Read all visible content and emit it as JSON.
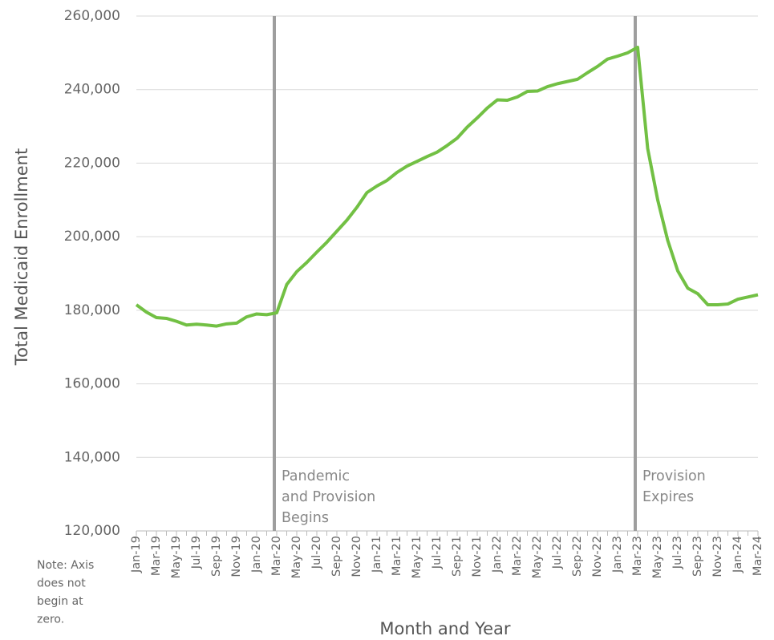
{
  "chart_data": {
    "type": "line",
    "x_label": "Month and Year",
    "y_label": "Total Medicaid Enrollment",
    "note": [
      "Note: Axis",
      "does not",
      "begin at",
      "zero."
    ],
    "categories": [
      "Jan-19",
      null,
      "Mar-19",
      null,
      "May-19",
      null,
      "Jul-19",
      null,
      "Sep-19",
      null,
      "Nov-19",
      null,
      "Jan-20",
      null,
      "Mar-20",
      null,
      "May-20",
      null,
      "Jul-20",
      null,
      "Sep-20",
      null,
      "Nov-20",
      null,
      "Jan-21",
      null,
      "Mar-21",
      null,
      "May-21",
      null,
      "Jul-21",
      null,
      "Sep-21",
      null,
      "Nov-21",
      null,
      "Jan-22",
      null,
      "Mar-22",
      null,
      "May-22",
      null,
      "Jul-22",
      null,
      "Sep-22",
      null,
      "Nov-22",
      null,
      "Jan-23",
      null,
      "Mar-23",
      null,
      "May-23",
      null,
      "Jul-23",
      null,
      "Sep-23",
      null,
      "Nov-23",
      null,
      "Jan-24",
      null,
      "Mar-24"
    ],
    "series": [
      {
        "name": "Total Medicaid Enrollment",
        "color": "#72c044",
        "values": [
          181500,
          179500,
          178000,
          177800,
          177000,
          176000,
          176200,
          176000,
          175700,
          176300,
          176500,
          178200,
          179000,
          178800,
          179300,
          187000,
          190500,
          193000,
          195800,
          198500,
          201500,
          204500,
          208000,
          212000,
          213800,
          215300,
          217500,
          219200,
          220500,
          221800,
          223000,
          224800,
          226800,
          229800,
          232300,
          235000,
          237200,
          237100,
          238000,
          239500,
          239600,
          240800,
          241600,
          242200,
          242800,
          244600,
          246300,
          248300,
          249100,
          250000,
          251500,
          224000,
          210000,
          199000,
          190700,
          186000,
          184500,
          181500,
          181500,
          181700,
          183000,
          183600,
          184200
        ]
      }
    ],
    "annotations": [
      {
        "lines": [
          "Pandemic",
          "and Provision",
          "Begins"
        ],
        "x": "Mar-20"
      },
      {
        "lines": [
          "Provision",
          "Expires"
        ],
        "x": "Mar-23"
      }
    ],
    "ylim": [
      120000,
      260000
    ],
    "yticks": [
      {
        "value": 120000,
        "label": "120,000"
      },
      {
        "value": 140000,
        "label": "140,000"
      },
      {
        "value": 160000,
        "label": "160,000"
      },
      {
        "value": 180000,
        "label": "180,000"
      },
      {
        "value": 200000,
        "label": "200,000"
      },
      {
        "value": 220000,
        "label": "220,000"
      },
      {
        "value": 240000,
        "label": "240,000"
      },
      {
        "value": 260000,
        "label": "260,000"
      }
    ],
    "grid": true
  }
}
